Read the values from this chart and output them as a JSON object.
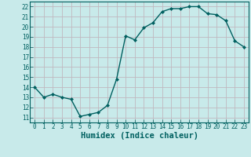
{
  "x": [
    0,
    1,
    2,
    3,
    4,
    5,
    6,
    7,
    8,
    9,
    10,
    11,
    12,
    13,
    14,
    15,
    16,
    17,
    18,
    19,
    20,
    21,
    22,
    23
  ],
  "y": [
    14.0,
    13.0,
    13.3,
    13.0,
    12.8,
    11.1,
    11.3,
    11.5,
    12.2,
    14.8,
    19.1,
    18.7,
    19.9,
    20.4,
    21.5,
    21.8,
    21.8,
    22.0,
    22.0,
    21.3,
    21.2,
    20.6,
    18.6,
    18.0
  ],
  "line_color": "#006060",
  "marker": "D",
  "marker_size": 2.0,
  "bg_color": "#c8eaea",
  "grid_color": "#c0b8c0",
  "xlabel": "Humidex (Indice chaleur)",
  "ylabel_ticks": [
    11,
    12,
    13,
    14,
    15,
    16,
    17,
    18,
    19,
    20,
    21,
    22
  ],
  "xlim": [
    -0.5,
    23.5
  ],
  "ylim": [
    10.5,
    22.5
  ],
  "xticks": [
    0,
    1,
    2,
    3,
    4,
    5,
    6,
    7,
    8,
    9,
    10,
    11,
    12,
    13,
    14,
    15,
    16,
    17,
    18,
    19,
    20,
    21,
    22,
    23
  ],
  "tick_color": "#006060",
  "label_color": "#006060",
  "tick_fontsize": 5.5,
  "xlabel_fontsize": 7.5
}
